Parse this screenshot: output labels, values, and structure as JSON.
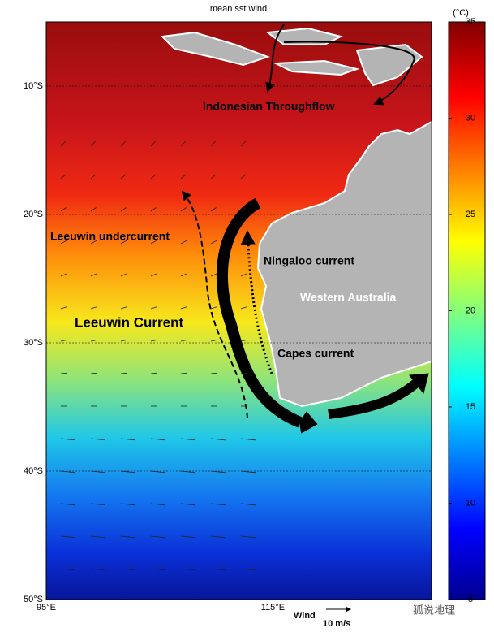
{
  "title": "mean sst wind",
  "map": {
    "xlim": [
      95,
      129
    ],
    "ylim": [
      -50,
      -5
    ],
    "xticks": [
      {
        "value": 95,
        "label": "95°E"
      },
      {
        "value": 115,
        "label": "115°E"
      }
    ],
    "yticks": [
      {
        "value": -10,
        "label": "10°S"
      },
      {
        "value": -20,
        "label": "20°S"
      },
      {
        "value": -30,
        "label": "30°S"
      },
      {
        "value": -40,
        "label": "40°S"
      },
      {
        "value": -50,
        "label": "50°S"
      }
    ]
  },
  "colorbar": {
    "unit": "(°C)",
    "lim": [
      5,
      35
    ],
    "ticks": [
      5,
      10,
      15,
      20,
      25,
      30,
      35
    ]
  },
  "labels": {
    "throughflow": "Indonesian Throughflow",
    "undercurrent": "Leeuwin undercurrent",
    "ningaloo": "Ningaloo current",
    "region": "Western Australia",
    "leeuwin": "Leeuwin Current",
    "capes": "Capes current"
  },
  "wind_key": {
    "label": "Wind",
    "scale": "10 m/s"
  },
  "watermark": "狐说地理"
}
